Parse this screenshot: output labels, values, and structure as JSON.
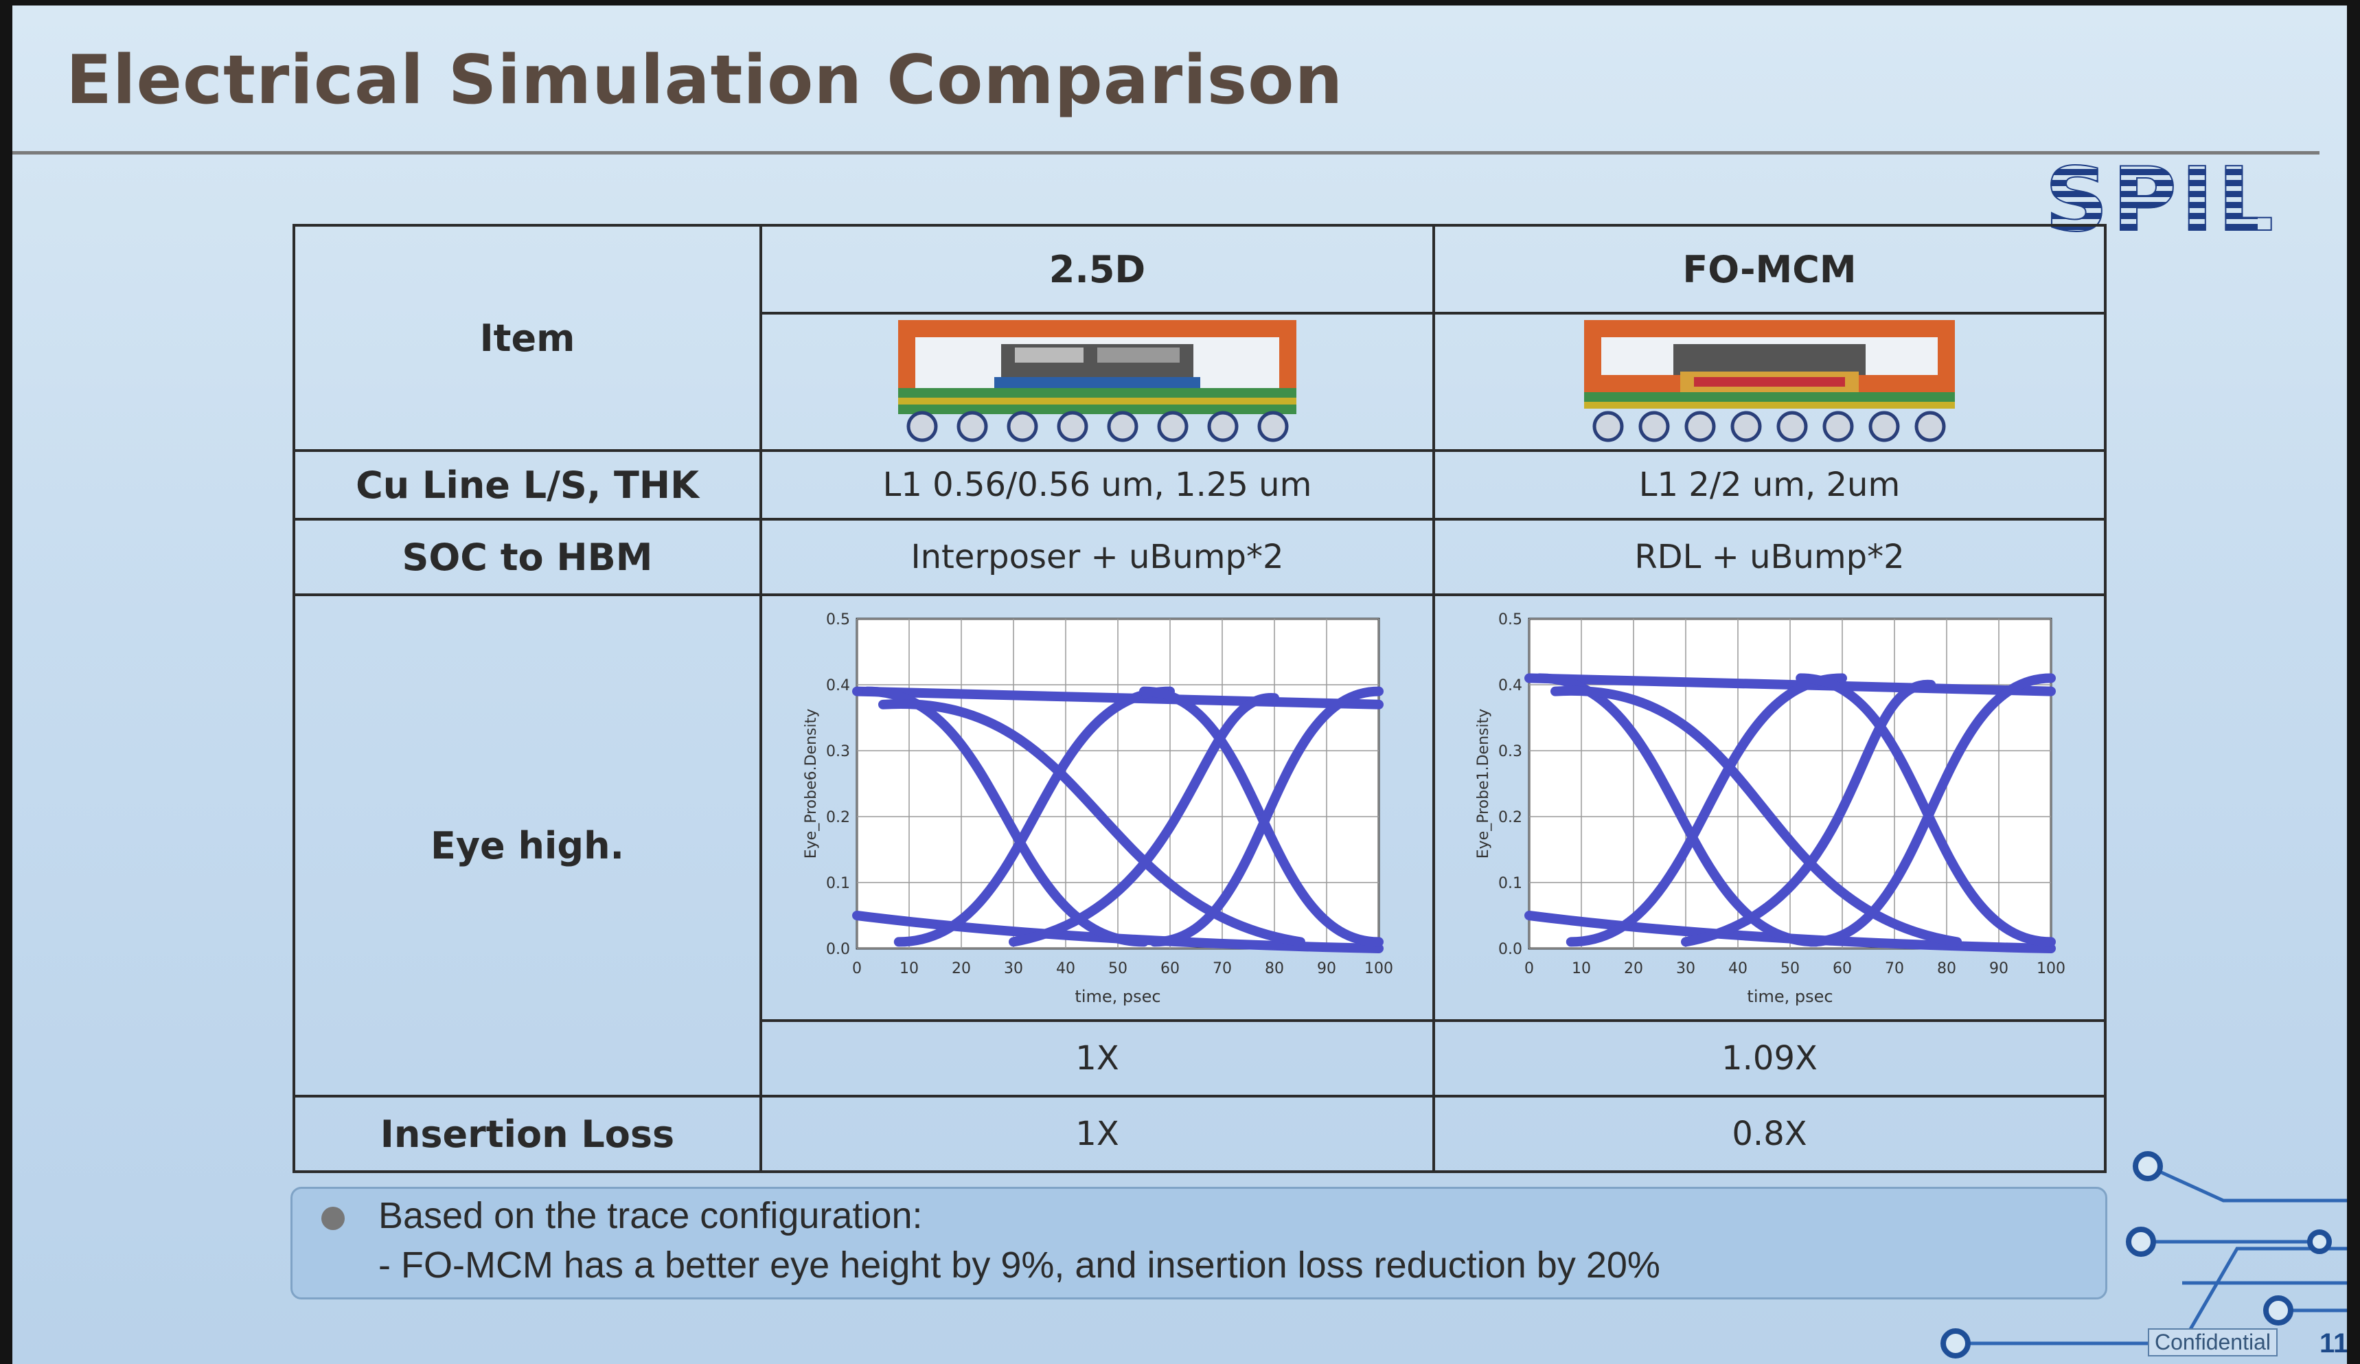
{
  "slide": {
    "title": "Electrical Simulation Comparison",
    "logo_text": "SPIL",
    "confidential": "Confidential",
    "page_number": "11"
  },
  "table": {
    "headers": {
      "item": "Item",
      "col1": "2.5D",
      "col2": "FO-MCM"
    },
    "rows": [
      {
        "label": "Cu Line L/S, THK",
        "col1": "L1 0.56/0.56 um, 1.25 um",
        "col2": "L1 2/2 um, 2um"
      },
      {
        "label": "SOC to HBM",
        "col1": "Interposer + uBump*2",
        "col2": "RDL + uBump*2"
      },
      {
        "label": "Eye high.",
        "col1": "1X",
        "col2": "1.09X"
      },
      {
        "label": "Insertion Loss",
        "col1": "1X",
        "col2": "0.8X"
      }
    ]
  },
  "chart_data": [
    {
      "type": "line",
      "ylabel": "Eye_Probe6.Density",
      "xlabel": "time, psec",
      "xlim": [
        0,
        100
      ],
      "ylim": [
        0.0,
        0.5
      ],
      "xticks": [
        "0",
        "10",
        "20",
        "30",
        "40",
        "50",
        "60",
        "70",
        "80",
        "90",
        "100"
      ],
      "yticks": [
        "0.0",
        "0.1",
        "0.2",
        "0.3",
        "0.4",
        "0.5"
      ],
      "eye": {
        "high": 0.39,
        "low": 0.01,
        "cross_x": [
          25,
          75
        ],
        "open_start": 0
      }
    },
    {
      "type": "line",
      "ylabel": "Eye_Probe1.Density",
      "xlabel": "time, psec",
      "xlim": [
        0,
        100
      ],
      "ylim": [
        0.0,
        0.5
      ],
      "xticks": [
        "0",
        "10",
        "20",
        "30",
        "40",
        "50",
        "60",
        "70",
        "80",
        "90",
        "100"
      ],
      "yticks": [
        "0.0",
        "0.1",
        "0.2",
        "0.3",
        "0.4",
        "0.5"
      ],
      "eye": {
        "high": 0.41,
        "low": 0.01,
        "cross_x": [
          25,
          72
        ],
        "open_start": 0
      }
    }
  ],
  "notes": {
    "line1": "Based on the trace configuration:",
    "line2": "- FO-MCM has a better eye height by 9%, and insertion loss reduction by 20%"
  },
  "colors": {
    "eye_trace": "#4b4fc9",
    "package_orange": "#d9622b",
    "logo_blue": "#1f3e86"
  }
}
